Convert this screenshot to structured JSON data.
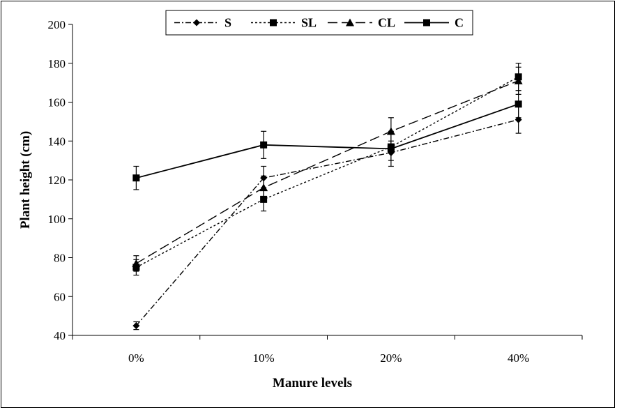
{
  "chart_data": {
    "type": "line",
    "title": "",
    "xlabel": "Manure levels",
    "ylabel": "Plant height (cm)",
    "categories": [
      "0%",
      "10%",
      "20%",
      "40%"
    ],
    "ylim": [
      40,
      200
    ],
    "yticks": [
      40,
      60,
      80,
      100,
      120,
      140,
      160,
      180,
      200
    ],
    "grid": false,
    "legend_position": "top-center",
    "series": [
      {
        "name": "S",
        "marker": "diamond",
        "dash": "dashdot",
        "values": [
          45,
          121,
          134,
          151
        ],
        "errors": [
          2,
          6,
          4,
          7
        ]
      },
      {
        "name": "SL",
        "marker": "square",
        "dash": "dotted",
        "values": [
          75,
          110,
          137,
          173
        ],
        "errors": [
          4,
          6,
          3,
          7
        ]
      },
      {
        "name": "CL",
        "marker": "triangle",
        "dash": "longdash",
        "values": [
          77,
          116,
          145,
          171
        ],
        "errors": [
          4,
          6,
          7,
          7
        ]
      },
      {
        "name": "C",
        "marker": "square",
        "dash": "solid",
        "values": [
          121,
          138,
          136,
          159
        ],
        "errors": [
          6,
          7,
          9,
          7
        ]
      }
    ]
  }
}
